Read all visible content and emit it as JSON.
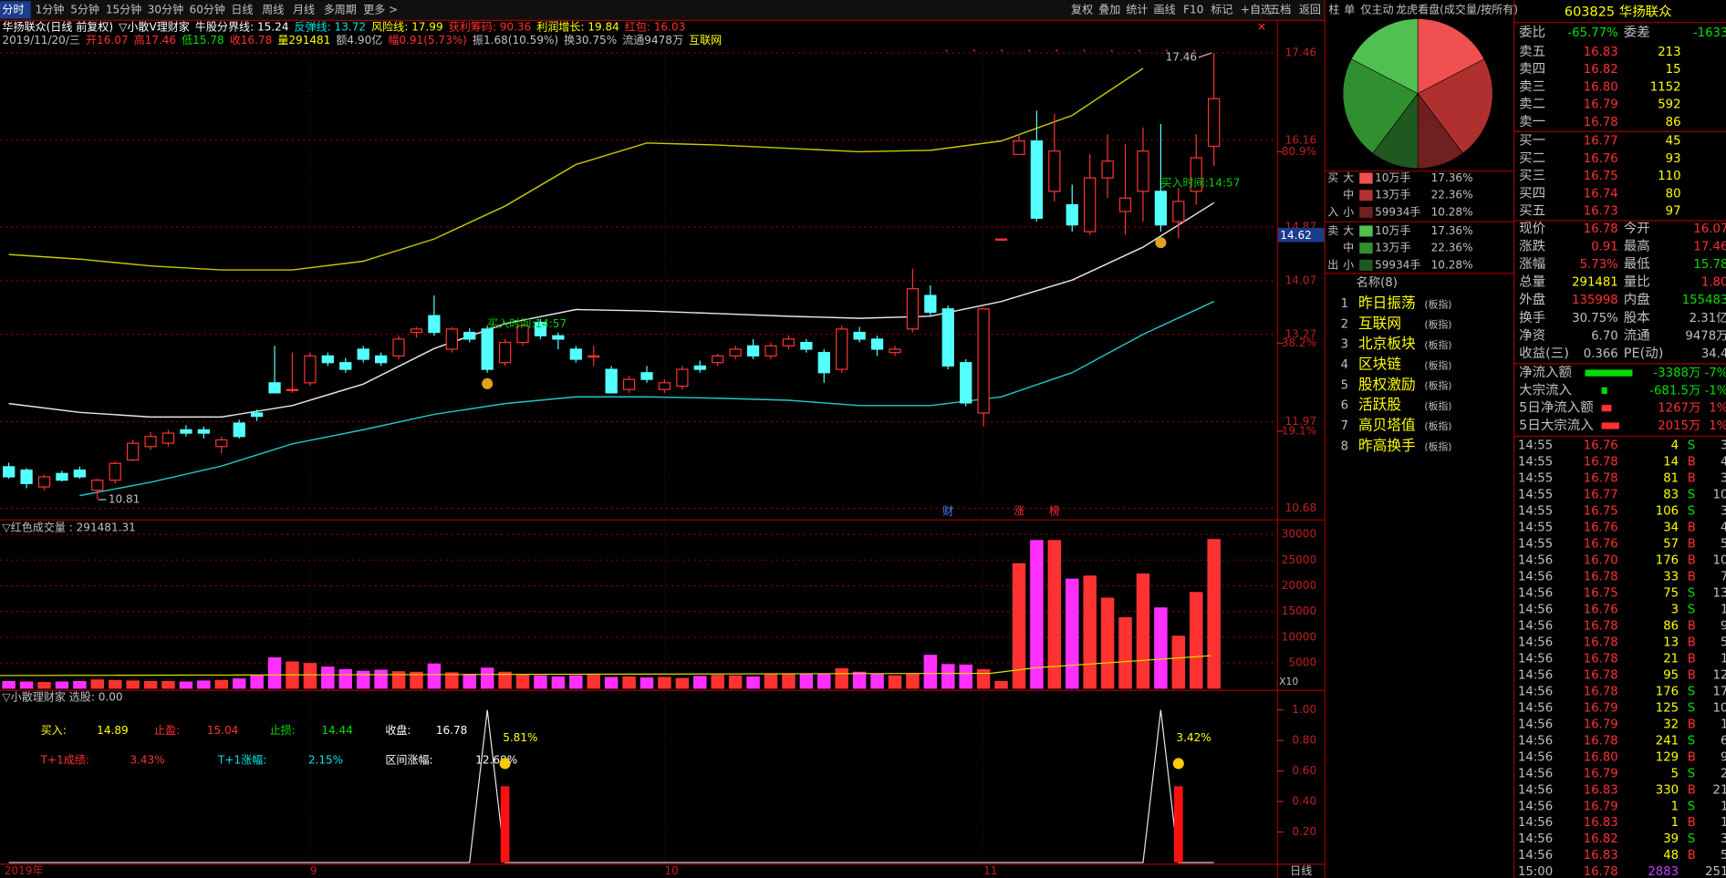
{
  "toolbar": {
    "tabs": [
      "分时",
      "1分钟",
      "5分钟",
      "15分钟",
      "30分钟",
      "60分钟",
      "日线",
      "周线",
      "月线",
      "多周期",
      "更多 >"
    ],
    "tools": [
      "复权",
      "叠加",
      "统计",
      "画线",
      "F10",
      "标记",
      "+自选",
      "五档",
      "返回"
    ],
    "side_tabs": [
      "柱",
      "单",
      "仅主动",
      "龙虎看盘(成交量/按所有)"
    ]
  },
  "info": [
    {
      "text": "华扬联众(日线 前复权)",
      "color": "#ffffff"
    },
    {
      "text": "▽小散V理财家",
      "color": "#ffffff"
    },
    {
      "text": "牛股分界线: 15.24",
      "color": "#ffffff"
    },
    {
      "text": "反弹线: 13.72",
      "color": "#00e5e5"
    },
    {
      "text": "风险线: 17.99",
      "color": "#ffff00"
    },
    {
      "text": "获利筹码: 90.36",
      "color": "#ff3030"
    },
    {
      "text": "利润增长: 19.84",
      "color": "#ffff00"
    },
    {
      "text": "红包: 16.03",
      "color": "#ff3030"
    }
  ],
  "quote_line": [
    {
      "text": "2019/11/20/三",
      "color": "#c0c0c0"
    },
    {
      "text": "开16.07",
      "color": "#ff3030"
    },
    {
      "text": "高17.46",
      "color": "#ff3030"
    },
    {
      "text": "低15.78",
      "color": "#00e000"
    },
    {
      "text": "收16.78",
      "color": "#ff3030"
    },
    {
      "text": "量291481",
      "color": "#ffff00"
    },
    {
      "text": "额4.90亿",
      "color": "#c0c0c0"
    },
    {
      "text": "幅0.91(5.73%)",
      "color": "#ff3030"
    },
    {
      "text": "振1.68(10.59%)",
      "color": "#c0c0c0"
    },
    {
      "text": "换30.75%",
      "color": "#c0c0c0"
    },
    {
      "text": "流通9478万",
      "color": "#c0c0c0"
    },
    {
      "text": "互联网",
      "color": "#ffff00"
    }
  ],
  "chart": {
    "type": "candlestick",
    "up_color": "#ff3232",
    "down_color": "#54ffff",
    "ylim": [
      10.55,
      17.56
    ],
    "yticks": [
      10.68,
      11.97,
      13.27,
      14.07,
      14.87,
      16.16,
      17.46
    ],
    "fib_ticks": [
      {
        "value": 15.99,
        "label": "80.9%"
      },
      {
        "value": 13.14,
        "label": "38.2%"
      },
      {
        "value": 11.83,
        "label": "19.1%"
      }
    ],
    "cursor_price": "14.62",
    "candles": [
      [
        11.3,
        11.36,
        11.12,
        11.15
      ],
      [
        11.25,
        11.28,
        10.98,
        11.05
      ],
      [
        11.0,
        11.18,
        10.95,
        11.15
      ],
      [
        11.2,
        11.24,
        11.08,
        11.1
      ],
      [
        11.25,
        11.3,
        11.12,
        11.15
      ],
      [
        10.95,
        11.12,
        10.81,
        11.1
      ],
      [
        11.1,
        11.38,
        11.05,
        11.35
      ],
      [
        11.4,
        11.7,
        11.38,
        11.65
      ],
      [
        11.6,
        11.82,
        11.55,
        11.75
      ],
      [
        11.65,
        11.85,
        11.6,
        11.8
      ],
      [
        11.85,
        11.92,
        11.75,
        11.8
      ],
      [
        11.85,
        11.9,
        11.72,
        11.8
      ],
      [
        11.6,
        11.75,
        11.5,
        11.7
      ],
      [
        11.95,
        12.0,
        11.72,
        11.75
      ],
      [
        12.1,
        12.15,
        11.98,
        12.05
      ],
      [
        12.55,
        13.1,
        12.4,
        12.4
      ],
      [
        12.45,
        13.0,
        12.4,
        12.45
      ],
      [
        12.55,
        13.0,
        12.5,
        12.95
      ],
      [
        12.95,
        13.0,
        12.8,
        12.85
      ],
      [
        12.85,
        12.92,
        12.7,
        12.75
      ],
      [
        13.05,
        13.1,
        12.85,
        12.9
      ],
      [
        12.95,
        13.0,
        12.8,
        12.85
      ],
      [
        12.95,
        13.25,
        12.9,
        13.2
      ],
      [
        13.3,
        13.38,
        13.22,
        13.35
      ],
      [
        13.55,
        13.85,
        13.25,
        13.3
      ],
      [
        13.05,
        13.38,
        13.0,
        13.35
      ],
      [
        13.3,
        13.36,
        13.15,
        13.2
      ],
      [
        13.35,
        13.4,
        12.7,
        12.75
      ],
      [
        12.85,
        13.2,
        12.8,
        13.15
      ],
      [
        13.15,
        13.42,
        13.1,
        13.4
      ],
      [
        13.45,
        13.5,
        13.2,
        13.25
      ],
      [
        13.25,
        13.3,
        13.05,
        13.2
      ],
      [
        13.05,
        13.1,
        12.85,
        12.9
      ],
      [
        12.95,
        13.1,
        12.8,
        12.95
      ],
      [
        12.75,
        12.8,
        12.4,
        12.4
      ],
      [
        12.45,
        12.65,
        12.4,
        12.6
      ],
      [
        12.7,
        12.8,
        12.55,
        12.6
      ],
      [
        12.45,
        12.6,
        12.4,
        12.55
      ],
      [
        12.5,
        12.8,
        12.45,
        12.75
      ],
      [
        12.8,
        12.88,
        12.7,
        12.75
      ],
      [
        12.85,
        12.98,
        12.8,
        12.95
      ],
      [
        12.95,
        13.1,
        12.9,
        13.05
      ],
      [
        13.1,
        13.2,
        12.9,
        12.95
      ],
      [
        12.95,
        13.15,
        12.9,
        13.1
      ],
      [
        13.1,
        13.25,
        13.05,
        13.2
      ],
      [
        13.15,
        13.2,
        13.0,
        13.05
      ],
      [
        13.0,
        13.05,
        12.55,
        12.7
      ],
      [
        12.75,
        13.4,
        12.7,
        13.35
      ],
      [
        13.3,
        13.38,
        13.15,
        13.2
      ],
      [
        13.2,
        13.25,
        12.95,
        13.05
      ],
      [
        13.0,
        13.1,
        12.95,
        13.05
      ],
      [
        13.35,
        14.25,
        13.3,
        13.95
      ],
      [
        13.85,
        14.0,
        13.55,
        13.6
      ],
      [
        13.65,
        13.7,
        12.75,
        12.8
      ],
      [
        12.85,
        12.9,
        12.2,
        12.25
      ],
      [
        12.1,
        13.65,
        11.9,
        13.65
      ],
      [
        14.69,
        14.69,
        14.69,
        14.69
      ],
      [
        15.95,
        16.25,
        15.95,
        16.15
      ],
      [
        16.15,
        16.6,
        14.95,
        15.0
      ],
      [
        15.4,
        16.55,
        15.25,
        16.0
      ],
      [
        15.2,
        15.5,
        14.8,
        14.9
      ],
      [
        14.8,
        15.95,
        14.75,
        15.6
      ],
      [
        15.6,
        16.25,
        15.3,
        15.85
      ],
      [
        15.1,
        16.1,
        14.75,
        15.3
      ],
      [
        15.4,
        16.35,
        14.95,
        16.0
      ],
      [
        15.4,
        16.4,
        14.8,
        14.9
      ],
      [
        14.95,
        15.45,
        14.7,
        15.25
      ],
      [
        15.4,
        16.25,
        15.2,
        15.9
      ],
      [
        16.07,
        17.46,
        15.78,
        16.78
      ]
    ],
    "bands": {
      "indices": [
        0,
        4,
        8,
        12,
        16,
        20,
        24,
        28,
        32,
        36,
        40,
        44,
        48,
        52,
        56,
        60,
        64,
        68
      ],
      "upper": [
        14.46,
        14.39,
        14.29,
        14.23,
        14.23,
        14.36,
        14.69,
        15.18,
        15.8,
        16.12,
        16.09,
        16.04,
        15.99,
        16.01,
        16.15,
        16.53,
        17.23,
        null
      ],
      "middle": [
        12.24,
        12.11,
        12.04,
        12.04,
        12.21,
        12.53,
        13.06,
        13.43,
        13.64,
        13.62,
        13.58,
        13.54,
        13.51,
        13.54,
        13.76,
        14.08,
        14.57,
        15.23
      ],
      "lower": [
        null,
        10.87,
        11.07,
        11.31,
        11.64,
        11.85,
        12.08,
        12.24,
        12.34,
        12.34,
        12.32,
        12.29,
        12.21,
        12.21,
        12.34,
        12.7,
        13.27,
        13.76
      ],
      "colors": {
        "upper": "#c8c800",
        "middle": "#e8e8e8",
        "lower": "#20c8c8"
      }
    },
    "buy_time_label": "买入时间:14:57",
    "buy_points": [
      27,
      65
    ],
    "events": [
      {
        "index": 53,
        "label": "财"
      },
      {
        "index": 57,
        "label": "涨"
      },
      {
        "index": 59,
        "label": "榜"
      }
    ],
    "x_labels": [
      {
        "index": 0,
        "label": "2019年"
      },
      {
        "index": 17,
        "label": "9"
      },
      {
        "index": 37,
        "label": "10"
      },
      {
        "index": 55,
        "label": "11"
      }
    ],
    "period": "日线"
  },
  "volume": {
    "title": "▽红色成交量 : 291481.31",
    "ylim": [
      0,
      32500
    ],
    "yticks": [
      5000,
      10000,
      15000,
      20000,
      25000,
      30000
    ],
    "unit": "X10",
    "values": [
      1500,
      1400,
      1300,
      1400,
      1500,
      1800,
      1700,
      1600,
      1500,
      1500,
      1400,
      1600,
      1700,
      2000,
      2600,
      6100,
      5300,
      5000,
      4300,
      3800,
      3500,
      3700,
      3400,
      3300,
      4900,
      3200,
      2900,
      4100,
      3300,
      2800,
      2600,
      2400,
      2600,
      2700,
      2300,
      2400,
      2200,
      2300,
      2100,
      2500,
      2700,
      2600,
      2400,
      2800,
      3000,
      2900,
      3000,
      4000,
      3300,
      3000,
      2600,
      3000,
      6600,
      4800,
      4700,
      3800,
      1500,
      24400,
      28900,
      28900,
      21400,
      22000,
      17700,
      13900,
      22400,
      15800,
      10300,
      18800,
      29100
    ]
  },
  "indicator": {
    "title": "▽小散理财家  选股: 0.00",
    "ylim": [
      0,
      1.11
    ],
    "yticks": [
      {
        "value": 0.2,
        "label": "0.20"
      },
      {
        "value": 0.4,
        "label": "0.40"
      },
      {
        "value": 0.6,
        "label": "0.60"
      },
      {
        "value": 0.8,
        "label": "0.80"
      },
      {
        "value": 1,
        "label": "1.00"
      }
    ],
    "stats": [
      {
        "label": "买入:",
        "value": "14.89"
      },
      {
        "label": "止盈:",
        "value": "15.04"
      },
      {
        "label": "止损:",
        "value": "14.44"
      },
      {
        "label": "收盘:",
        "value": "16.78"
      },
      {
        "label": "T+1成绩:",
        "value": "3.43%"
      },
      {
        "label": "T+1涨幅:",
        "value": "2.15%"
      },
      {
        "label": "区间涨幅:",
        "value": "12.69%"
      }
    ],
    "spikes": {
      "indices": [
        27,
        65
      ],
      "values": [
        1,
        1
      ]
    },
    "bars": {
      "indices": [
        28,
        66
      ],
      "values": [
        0.5,
        0.5
      ]
    },
    "signal_labels": [
      "5.81%",
      "3.42%"
    ]
  },
  "flow": {
    "buy": {
      "side": [
        "买",
        "入"
      ],
      "categories": [
        "大",
        "中",
        "小"
      ],
      "lots": [
        "10万手",
        "13万手",
        "59934手"
      ],
      "values": [
        17.36,
        22.36,
        10.28
      ],
      "value_labels": [
        "17.36%",
        "22.36%",
        "10.28%"
      ],
      "colors": [
        "#f05050",
        "#b03030",
        "#702020"
      ]
    },
    "sell": {
      "side": [
        "卖",
        "出"
      ],
      "categories": [
        "大",
        "中",
        "小"
      ],
      "lots": [
        "10万手",
        "13万手",
        "59934手"
      ],
      "values": [
        17.36,
        22.36,
        10.28
      ],
      "value_labels": [
        "17.36%",
        "22.36%",
        "10.28%"
      ],
      "colors": [
        "#50c050",
        "#309030",
        "#205820"
      ]
    }
  },
  "blocks": {
    "title": "名称(8)",
    "items": [
      [
        "1",
        "昨日振荡",
        "(板指)"
      ],
      [
        "2",
        "互联网",
        "(板指)"
      ],
      [
        "3",
        "北京板块",
        "(板指)"
      ],
      [
        "4",
        "区块链",
        "(板指)"
      ],
      [
        "5",
        "股权激励",
        "(板指)"
      ],
      [
        "6",
        "活跃股",
        "(板指)"
      ],
      [
        "7",
        "高贝塔值",
        "(板指)"
      ],
      [
        "8",
        "昨高换手",
        "(板指)"
      ]
    ]
  },
  "quote": {
    "code": "603825 华扬联众",
    "ratio": [
      "委比",
      "-65.77%",
      "委差",
      "-1633"
    ],
    "asks": [
      [
        "卖五",
        "16.83",
        "213"
      ],
      [
        "卖四",
        "16.82",
        "15"
      ],
      [
        "卖三",
        "16.80",
        "1152"
      ],
      [
        "卖二",
        "16.79",
        "592"
      ],
      [
        "卖一",
        "16.78",
        "86"
      ]
    ],
    "bids": [
      [
        "买一",
        "16.77",
        "45"
      ],
      [
        "买二",
        "16.76",
        "93"
      ],
      [
        "买三",
        "16.75",
        "110"
      ],
      [
        "买四",
        "16.74",
        "80"
      ],
      [
        "买五",
        "16.73",
        "97"
      ]
    ],
    "stats": [
      [
        "现价",
        "16.78",
        "今开",
        "16.07"
      ],
      [
        "涨跌",
        "0.91",
        "最高",
        "17.46"
      ],
      [
        "涨幅",
        "5.73%",
        "最低",
        "15.78"
      ],
      [
        "总量",
        "291481",
        "量比",
        "1.80"
      ],
      [
        "外盘",
        "135998",
        "内盘",
        "155483"
      ],
      [
        "换手",
        "30.75%",
        "股本",
        "2.31亿"
      ],
      [
        "净资",
        "6.70",
        "流通",
        "9478万"
      ],
      [
        "收益(三)",
        "0.366",
        "PE(动)",
        "34.4"
      ]
    ],
    "flows": [
      [
        "净流入额",
        "-3388万",
        "-7%"
      ],
      [
        "大宗流入",
        "-681.5万",
        "-1%"
      ],
      [
        "5日净流入额",
        "1267万",
        "1%"
      ],
      [
        "5日大宗流入",
        "2015万",
        "1%"
      ]
    ],
    "ticks": [
      [
        "14:55",
        "16.76",
        "4",
        "S",
        "3"
      ],
      [
        "14:55",
        "16.78",
        "14",
        "B",
        "4"
      ],
      [
        "14:55",
        "16.78",
        "81",
        "B",
        "3"
      ],
      [
        "14:55",
        "16.77",
        "83",
        "S",
        "10"
      ],
      [
        "14:55",
        "16.75",
        "106",
        "S",
        "3"
      ],
      [
        "14:55",
        "16.76",
        "34",
        "B",
        "4"
      ],
      [
        "14:55",
        "16.76",
        "57",
        "B",
        "5"
      ],
      [
        "14:56",
        "16.70",
        "176",
        "B",
        "10"
      ],
      [
        "14:56",
        "16.78",
        "33",
        "B",
        "7"
      ],
      [
        "14:56",
        "16.75",
        "75",
        "S",
        "13"
      ],
      [
        "14:56",
        "16.76",
        "3",
        "S",
        "1"
      ],
      [
        "14:56",
        "16.78",
        "86",
        "B",
        "9"
      ],
      [
        "14:56",
        "16.78",
        "13",
        "B",
        "5"
      ],
      [
        "14:56",
        "16.78",
        "21",
        "B",
        "1"
      ],
      [
        "14:56",
        "16.78",
        "95",
        "B",
        "12"
      ],
      [
        "14:56",
        "16.78",
        "176",
        "S",
        "17"
      ],
      [
        "14:56",
        "16.79",
        "125",
        "S",
        "10"
      ],
      [
        "14:56",
        "16.79",
        "32",
        "B",
        "1"
      ],
      [
        "14:56",
        "16.78",
        "241",
        "S",
        "6"
      ],
      [
        "14:56",
        "16.80",
        "129",
        "B",
        "9"
      ],
      [
        "14:56",
        "16.79",
        "5",
        "S",
        "2"
      ],
      [
        "14:56",
        "16.83",
        "330",
        "B",
        "21"
      ],
      [
        "14:56",
        "16.79",
        "1",
        "S",
        "1"
      ],
      [
        "14:56",
        "16.83",
        "1",
        "B",
        "1"
      ],
      [
        "14:56",
        "16.82",
        "39",
        "S",
        "3"
      ],
      [
        "14:56",
        "16.83",
        "48",
        "B",
        "5"
      ],
      [
        "15:00",
        "16.78",
        "2883",
        "251"
      ]
    ]
  }
}
